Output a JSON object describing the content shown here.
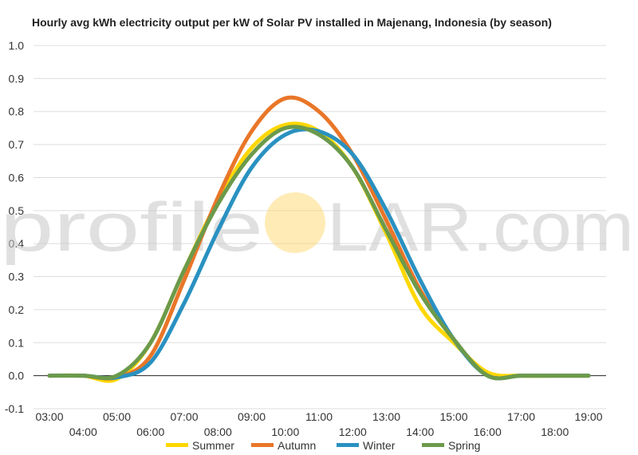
{
  "chart_data": {
    "type": "line",
    "title": "Hourly avg kWh electricity output per kW of Solar PV installed in Majenang, Indonesia (by season)",
    "xlabel": "",
    "ylabel": "",
    "ylim": [
      -0.1,
      1.0
    ],
    "yticks": [
      "1.0",
      "0.9",
      "0.8",
      "0.7",
      "0.6",
      "0.5",
      "0.4",
      "0.3",
      "0.2",
      "0.1",
      "0.0",
      "-0.1"
    ],
    "categories": [
      "03:00",
      "04:00",
      "05:00",
      "06:00",
      "07:00",
      "08:00",
      "09:00",
      "10:00",
      "11:00",
      "12:00",
      "13:00",
      "14:00",
      "15:00",
      "16:00",
      "17:00",
      "18:00",
      "19:00"
    ],
    "grid": true,
    "legend_position": "bottom",
    "series": [
      {
        "name": "Summer",
        "color": "#ffd700",
        "values": [
          0,
          0,
          -0.01,
          0.1,
          0.32,
          0.53,
          0.69,
          0.76,
          0.74,
          0.63,
          0.43,
          0.21,
          0.1,
          0.01,
          0,
          0,
          0
        ]
      },
      {
        "name": "Autumn",
        "color": "#e97628",
        "values": [
          0,
          0,
          -0.005,
          0.06,
          0.29,
          0.54,
          0.74,
          0.84,
          0.8,
          0.67,
          0.47,
          0.26,
          0.11,
          0,
          0,
          0,
          0
        ]
      },
      {
        "name": "Winter",
        "color": "#2991c1",
        "values": [
          0,
          0,
          -0.005,
          0.04,
          0.22,
          0.44,
          0.63,
          0.73,
          0.74,
          0.67,
          0.5,
          0.29,
          0.11,
          0,
          0,
          0,
          0
        ]
      },
      {
        "name": "Spring",
        "color": "#6b9a4b",
        "values": [
          0,
          0,
          0,
          0.1,
          0.32,
          0.52,
          0.67,
          0.75,
          0.73,
          0.63,
          0.44,
          0.25,
          0.11,
          0,
          0,
          0,
          0
        ]
      }
    ]
  },
  "watermark": {
    "left": "profile",
    "right": "LAR.com",
    "sun_color": "#ffd76e"
  }
}
